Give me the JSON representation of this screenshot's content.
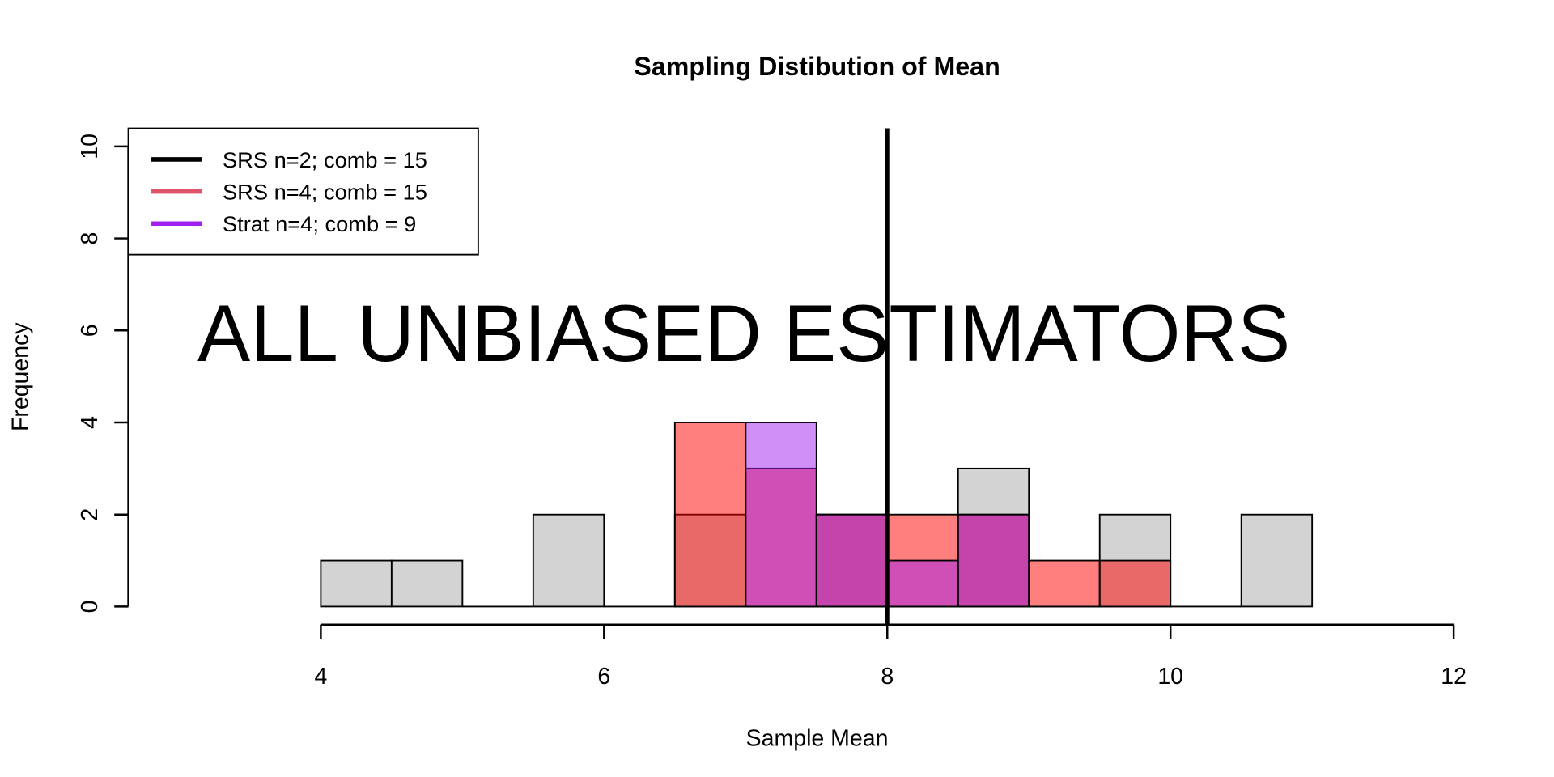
{
  "chart_data": {
    "type": "bar",
    "subtype": "overlaid-histogram",
    "title": "Sampling Distibution of Mean",
    "xlabel": "Sample Mean",
    "ylabel": "Frequency",
    "xlim": [
      4,
      12
    ],
    "ylim": [
      0,
      10
    ],
    "xticks": [
      "4",
      "6",
      "8",
      "10",
      "12"
    ],
    "yticks": [
      "0",
      "2",
      "4",
      "6",
      "8",
      "10"
    ],
    "bin_edges": [
      4,
      4.5,
      5,
      5.5,
      6,
      6.5,
      7,
      7.5,
      8,
      8.5,
      9,
      9.5,
      10,
      10.5,
      11
    ],
    "series": [
      {
        "name": "SRS n=2; comb = 15",
        "color": "#d3d3d3",
        "legend_color": "#000000",
        "opacity": 1,
        "values": [
          1,
          1,
          0,
          2,
          0,
          2,
          0,
          2,
          0,
          3,
          0,
          2,
          0,
          2
        ]
      },
      {
        "name": "SRS n=4; comb = 15",
        "color": "#ff0000",
        "legend_color": "#df536b",
        "opacity": 0.5,
        "values": [
          0,
          0,
          0,
          0,
          0,
          4,
          3,
          2,
          2,
          2,
          1,
          1,
          0,
          0
        ]
      },
      {
        "name": "Strat n=4; comb = 9",
        "color": "#a020f0",
        "legend_color": "#a020f0",
        "opacity": 0.5,
        "values": [
          0,
          0,
          0,
          0,
          0,
          0,
          4,
          2,
          1,
          2,
          0,
          0,
          0,
          0
        ]
      }
    ],
    "vline": {
      "x": 8,
      "color": "#000000"
    },
    "annotation": "ALL UNBIASED ESTIMATORS",
    "legend_position": "top-left",
    "grid": false
  }
}
